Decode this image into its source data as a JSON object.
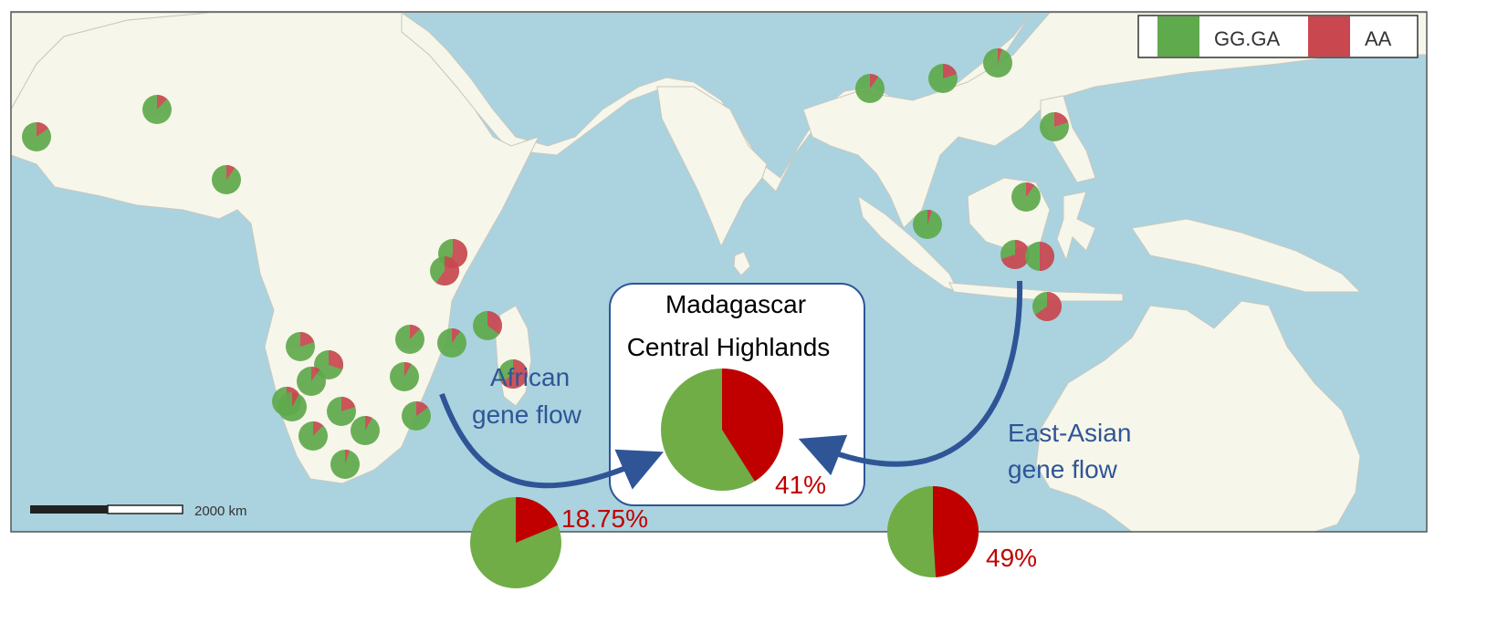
{
  "colors": {
    "sea": "#aad3df",
    "land": "#f7f6ea",
    "border": "#555555",
    "gg_ga": "#5faa4c",
    "aa": "#c9474f",
    "big_green": "#70ad47",
    "big_red": "#c00000",
    "arrow": "#2f5597",
    "label_blue": "#2f5597",
    "pct_red": "#c00000"
  },
  "legend": {
    "items": [
      {
        "label": "GG.GA",
        "color": "#5faa4c"
      },
      {
        "label": "AA",
        "color": "#c9474f"
      }
    ]
  },
  "scalebar": {
    "label": "2000 km"
  },
  "highlands": {
    "title_line1": "Madagascar",
    "title_line2": "Central Highlands",
    "aa_fraction": 0.41,
    "pct_label": "41%"
  },
  "african_flow": {
    "label_line1": "African",
    "label_line2": "gene flow",
    "aa_fraction": 0.1875,
    "pct_label": "18.75%"
  },
  "asian_flow": {
    "label_line1": "East-Asian",
    "label_line2": "gene flow",
    "aa_fraction": 0.49,
    "pct_label": "49%"
  },
  "population_aa_fractions": [
    0.15,
    0.12,
    0.1,
    0.55,
    0.6,
    0.35,
    0.65,
    0.2,
    0.3,
    0.1,
    0.15,
    0.08,
    0.2,
    0.12,
    0.08,
    0.05,
    0.12,
    0.1,
    0.08,
    0.15,
    0.1,
    0.2,
    0.05,
    0.2,
    0.1,
    0.05,
    0.7,
    0.5,
    0.65,
    0.7,
    0.65,
    0.1,
    0.6,
    0.55,
    0.12,
    0.45
  ]
}
